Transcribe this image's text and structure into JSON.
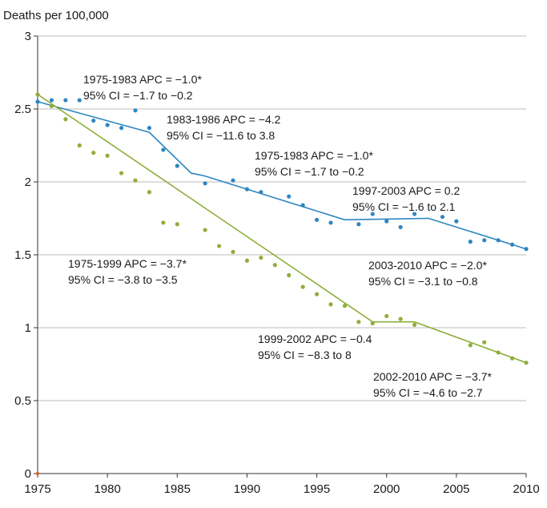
{
  "chart_data": {
    "type": "line",
    "ylabel": "Deaths per 100,000",
    "xlim": [
      1975,
      2010
    ],
    "ylim": [
      0,
      3
    ],
    "x_ticks": [
      "1975",
      "1980",
      "1985",
      "1990",
      "1995",
      "2000",
      "2005",
      "2010"
    ],
    "y_ticks": [
      "0",
      "0.5",
      "1",
      "1.5",
      "2",
      "2.5",
      "3"
    ],
    "grid": "horizontal",
    "series": [
      {
        "color": "#2e86c1",
        "observed": {
          "x": [
            1975,
            1976,
            1977,
            1978,
            1979,
            1980,
            1981,
            1982,
            1983,
            1984,
            1985,
            1987,
            1989,
            1990,
            1991,
            1993,
            1994,
            1995,
            1996,
            1998,
            1999,
            2000,
            2001,
            2002,
            2004,
            2005,
            2006,
            2007,
            2008,
            2009,
            2010
          ],
          "y": [
            2.55,
            2.56,
            2.56,
            2.56,
            2.42,
            2.39,
            2.37,
            2.49,
            2.37,
            2.22,
            2.11,
            1.99,
            2.01,
            1.95,
            1.93,
            1.9,
            1.84,
            1.74,
            1.72,
            1.71,
            1.78,
            1.73,
            1.69,
            1.78,
            1.76,
            1.73,
            1.59,
            1.6,
            1.6,
            1.57,
            1.54
          ]
        },
        "fitted": {
          "x": [
            1975,
            1983,
            1986,
            1987,
            1997,
            2003,
            2010
          ],
          "y": [
            2.55,
            2.34,
            2.06,
            2.04,
            1.74,
            1.75,
            1.54
          ]
        }
      },
      {
        "color": "#8fae3c",
        "observed": {
          "x": [
            1975,
            1976,
            1977,
            1978,
            1979,
            1980,
            1981,
            1982,
            1983,
            1984,
            1985,
            1987,
            1988,
            1989,
            1990,
            1991,
            1992,
            1993,
            1994,
            1995,
            1996,
            1997,
            1998,
            1999,
            2000,
            2001,
            2002,
            2006,
            2007,
            2008,
            2009,
            2010
          ],
          "y": [
            2.6,
            2.52,
            2.43,
            2.25,
            2.2,
            2.18,
            2.06,
            2.01,
            1.93,
            1.72,
            1.71,
            1.67,
            1.56,
            1.52,
            1.46,
            1.48,
            1.43,
            1.36,
            1.28,
            1.23,
            1.16,
            1.15,
            1.04,
            1.03,
            1.08,
            1.06,
            1.02,
            0.88,
            0.9,
            0.83,
            0.79,
            0.76
          ]
        },
        "fitted": {
          "x": [
            1975,
            1999,
            2002,
            2010
          ],
          "y": [
            2.6,
            1.04,
            1.04,
            0.76
          ]
        }
      }
    ],
    "annotations": [
      {
        "line1": "1975-1983 APC = −1.0*",
        "line2": "95% CI = −1.7 to −0.2"
      },
      {
        "line1": "1983-1986 APC = −4.2",
        "line2": "95% CI = −11.6 to 3.8"
      },
      {
        "line1": "1975-1983 APC = −1.0*",
        "line2": "95% CI = −1.7 to −0.2"
      },
      {
        "line1": "1997-2003 APC = 0.2",
        "line2": "95% CI = −1.6 to 2.1"
      },
      {
        "line1": "2003-2010 APC = −2.0*",
        "line2": "95% CI = −3.1 to −0.8"
      },
      {
        "line1": "1975-1999 APC = −3.7*",
        "line2": "95% CI = −3.8 to −3.5"
      },
      {
        "line1": "1999-2002 APC = −0.4",
        "line2": "95% CI = −8.3 to 8"
      },
      {
        "line1": "2002-2010 APC = −3.7*",
        "line2": "95% CI = −4.6 to −2.7"
      }
    ]
  }
}
